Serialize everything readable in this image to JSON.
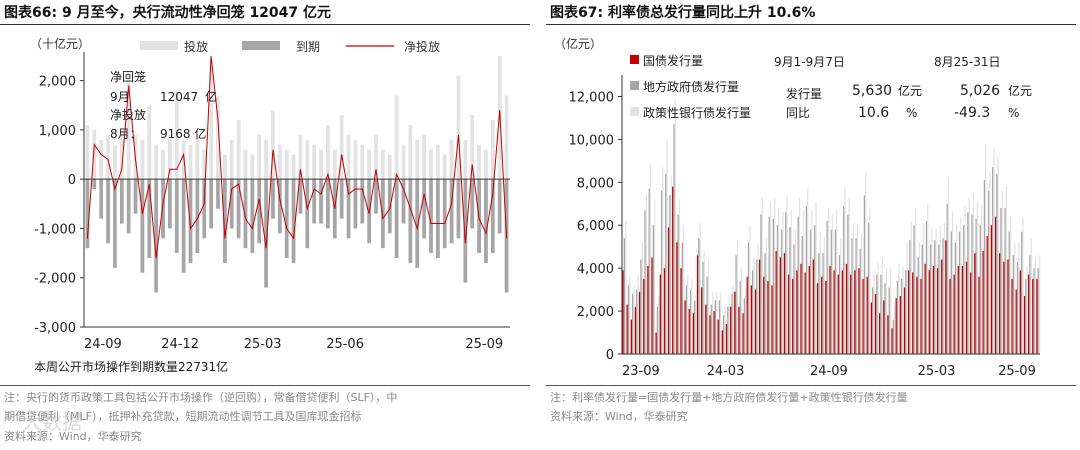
{
  "left": {
    "title": "图表66:  9 月至今，央行流动性净回笼 12047 亿元",
    "notes": [
      "注：央行的货币政策工具包括公开市场操作（逆回购），常备借贷便利（SLF），中",
      "期借贷便利（MLF），抵押补充贷款，短期流动性调节工具及国库现金招标",
      "资料来源：Wind，华泰研究"
    ],
    "annotation": {
      "l1": "净回笼",
      "l2a": "9月",
      "l2b": "12047",
      "l2c": "亿",
      "l3": "净投放",
      "l4a": "8月：",
      "l4b": "9168 亿"
    },
    "bottom_note": "本周公开市场操作到期数量22731亿"
  },
  "right": {
    "title": "图表67:  利率债总发行量同比上升 10.6%",
    "notes": [
      "注：利率债发行量=国债发行量+地方政府债发行量+政策性银行债发行量",
      "资料来源：Wind，华泰研究"
    ],
    "table": {
      "h1": "9月1-9月7日",
      "h2": "8月25-31日",
      "r1": "发行量",
      "r1a": "5,630",
      "r1b": "亿元",
      "r1c": "5,026",
      "r1d": "亿元",
      "r2": "同比",
      "r2a": "10.6",
      "r2b": "%",
      "r2c": "-49.3",
      "r2d": "%"
    }
  },
  "watermark": "大数据",
  "chart_data": [
    {
      "type": "bar",
      "ylabel": "（十亿元）",
      "ylim": [
        -3000,
        2500
      ],
      "yticks": [
        -3000,
        -2000,
        -1000,
        0,
        1000,
        2000
      ],
      "ytick_labels": [
        "-3,000",
        "-2,000",
        "-1,000",
        "0",
        "1,000",
        "2,000"
      ],
      "xtick_labels": [
        "24-09",
        "24-12",
        "25-03",
        "25-06",
        "25-09"
      ],
      "legend": [
        "投放",
        "到期",
        "净投放"
      ],
      "legend_position": "top",
      "colors": {
        "injection": "#e3e3e3",
        "maturity": "#a6a6a6",
        "net": "#c00000"
      },
      "series": [
        {
          "name": "投放",
          "values": [
            1100,
            1000,
            800,
            900,
            700,
            1000,
            2200,
            900,
            800,
            1500,
            700,
            600,
            900,
            1800,
            800,
            700,
            900,
            600,
            2300,
            1700,
            500,
            800,
            1200,
            600,
            500,
            900,
            800,
            1400,
            700,
            600,
            500,
            900,
            800,
            700,
            600,
            1100,
            600,
            1300,
            900,
            800,
            700,
            600,
            900,
            600,
            500,
            1700,
            700,
            1100,
            800,
            900,
            600,
            700,
            500,
            800,
            2100,
            800,
            1300,
            700,
            600,
            1200,
            2500,
            1700
          ]
        },
        {
          "name": "到期",
          "values": [
            -1400,
            -200,
            -800,
            -1300,
            -1800,
            -900,
            -1100,
            -700,
            -1900,
            -1600,
            -2300,
            -1200,
            -1000,
            -1500,
            -1900,
            -1700,
            -1500,
            -1200,
            -1000,
            -600,
            -1700,
            -1000,
            -1200,
            -1400,
            -1500,
            -1300,
            -2200,
            -800,
            -1100,
            -1600,
            -1700,
            -700,
            -1400,
            -900,
            -900,
            -1000,
            -1200,
            -800,
            -1200,
            -1000,
            -900,
            -1300,
            -700,
            -1400,
            -1100,
            -1600,
            -900,
            -1700,
            -1800,
            -1200,
            -1500,
            -1600,
            -1400,
            -1300,
            -1200,
            -2100,
            -1000,
            -1500,
            -1700,
            -1500,
            -1100,
            -2300
          ]
        },
        {
          "name": "净投放",
          "values": [
            -1200,
            700,
            500,
            400,
            -200,
            200,
            1900,
            400,
            -700,
            -100,
            -1600,
            -500,
            200,
            200,
            500,
            -1000,
            -800,
            -500,
            2500,
            1200,
            -1200,
            -200,
            -100,
            -800,
            -1000,
            -400,
            -1400,
            600,
            -400,
            -1000,
            -1200,
            200,
            -600,
            -200,
            -300,
            100,
            -600,
            500,
            -300,
            -200,
            -200,
            -700,
            200,
            -800,
            -600,
            100,
            -200,
            -600,
            -1000,
            -300,
            -900,
            -900,
            -900,
            -500,
            900,
            -1300,
            300,
            -800,
            -1100,
            -300,
            1400,
            -1200
          ]
        }
      ]
    },
    {
      "type": "bar",
      "ylabel": "（亿元）",
      "ylim": [
        0,
        13000
      ],
      "yticks": [
        0,
        2000,
        4000,
        6000,
        8000,
        10000,
        12000
      ],
      "ytick_labels": [
        "0",
        "2,000",
        "4,000",
        "6,000",
        "8,000",
        "10,000",
        "12,000"
      ],
      "xtick_labels": [
        "23-09",
        "24-03",
        "24-09",
        "25-03",
        "25-09"
      ],
      "legend": [
        "国债发行量",
        "地方政府债发行量",
        "政策性银行债发行量"
      ],
      "legend_position": "top-left",
      "colors": {
        "treasury": "#c00000",
        "local": "#a6a6a6",
        "policy": "#e3e3e3"
      },
      "series": [
        {
          "name": "国债发行量",
          "values": [
            3900,
            2300,
            1600,
            2200,
            2900,
            3500,
            4100,
            4500,
            1000,
            3700,
            4000,
            5900,
            7800,
            5200,
            4000,
            2500,
            2100,
            1900,
            4600,
            3100,
            2300,
            1800,
            2000,
            1600,
            1100,
            1400,
            2200,
            2900,
            2200,
            1900,
            3600,
            3200,
            3000,
            4400,
            3600,
            3400,
            3200,
            4800,
            4500,
            4700,
            3700,
            3500,
            3900,
            4200,
            3800,
            4100,
            4400,
            3300,
            3600,
            3400,
            4100,
            3900,
            3700,
            3900,
            4200,
            3700,
            3900,
            4000,
            3500,
            3600,
            2400,
            2800,
            1900,
            2500,
            1800,
            1200,
            2600,
            2700,
            3100,
            3900,
            3800,
            3600,
            3500,
            4200,
            3900,
            4100,
            4000,
            4400,
            5300,
            3500,
            3700,
            4100,
            4100,
            4300,
            3800,
            4700,
            3600,
            4800,
            5500,
            6000,
            6400,
            4700,
            4300,
            4400,
            3500,
            3000,
            3900,
            2700,
            3700,
            3500,
            3500
          ]
        },
        {
          "name": "地方政府债发行量",
          "values": [
            1500,
            900,
            1200,
            800,
            1500,
            3200,
            3600,
            1500,
            1200,
            3900,
            4400,
            1500,
            2900,
            1300,
            1200,
            700,
            900,
            600,
            800,
            1200,
            1300,
            500,
            500,
            900,
            700,
            800,
            600,
            1700,
            1200,
            700,
            1600,
            700,
            1400,
            2100,
            1100,
            3000,
            3100,
            1200,
            1300,
            1900,
            2200,
            1600,
            2500,
            1300,
            3100,
            1700,
            1600,
            1400,
            1100,
            2800,
            1700,
            1900,
            900,
            3000,
            2300,
            1700,
            1500,
            900,
            3900,
            2500,
            700,
            900,
            1800,
            800,
            1300,
            400,
            800,
            800,
            800,
            1400,
            2200,
            900,
            1600,
            2000,
            1200,
            1200,
            1100,
            1000,
            1700,
            2200,
            1500,
            1600,
            1900,
            2300,
            2700,
            1600,
            2400,
            3300,
            2100,
            2700,
            2000,
            2100,
            2500,
            1300,
            1100,
            1300,
            1800,
            800,
            900,
            500,
            500
          ]
        },
        {
          "name": "政策性银行债发行量",
          "values": [
            800,
            400,
            400,
            700,
            800,
            700,
            1200,
            1200,
            500,
            1100,
            1600,
            900,
            1200,
            700,
            800,
            500,
            500,
            500,
            700,
            500,
            800,
            600,
            400,
            400,
            400,
            500,
            400,
            700,
            600,
            500,
            800,
            600,
            700,
            800,
            700,
            700,
            1000,
            800,
            800,
            800,
            800,
            700,
            900,
            1200,
            800,
            900,
            1100,
            1000,
            700,
            600,
            700,
            900,
            800,
            900,
            800,
            700,
            700,
            700,
            1100,
            700,
            800,
            600,
            800,
            700,
            900,
            700,
            800,
            600,
            1300,
            900,
            800,
            700,
            1000,
            800,
            800,
            600,
            900,
            700,
            1200,
            900,
            800,
            700,
            900,
            700,
            1000,
            800,
            900,
            1700,
            900,
            900,
            800,
            800,
            1000,
            700,
            600,
            900,
            700,
            600,
            800,
            500,
            600
          ]
        }
      ]
    }
  ]
}
